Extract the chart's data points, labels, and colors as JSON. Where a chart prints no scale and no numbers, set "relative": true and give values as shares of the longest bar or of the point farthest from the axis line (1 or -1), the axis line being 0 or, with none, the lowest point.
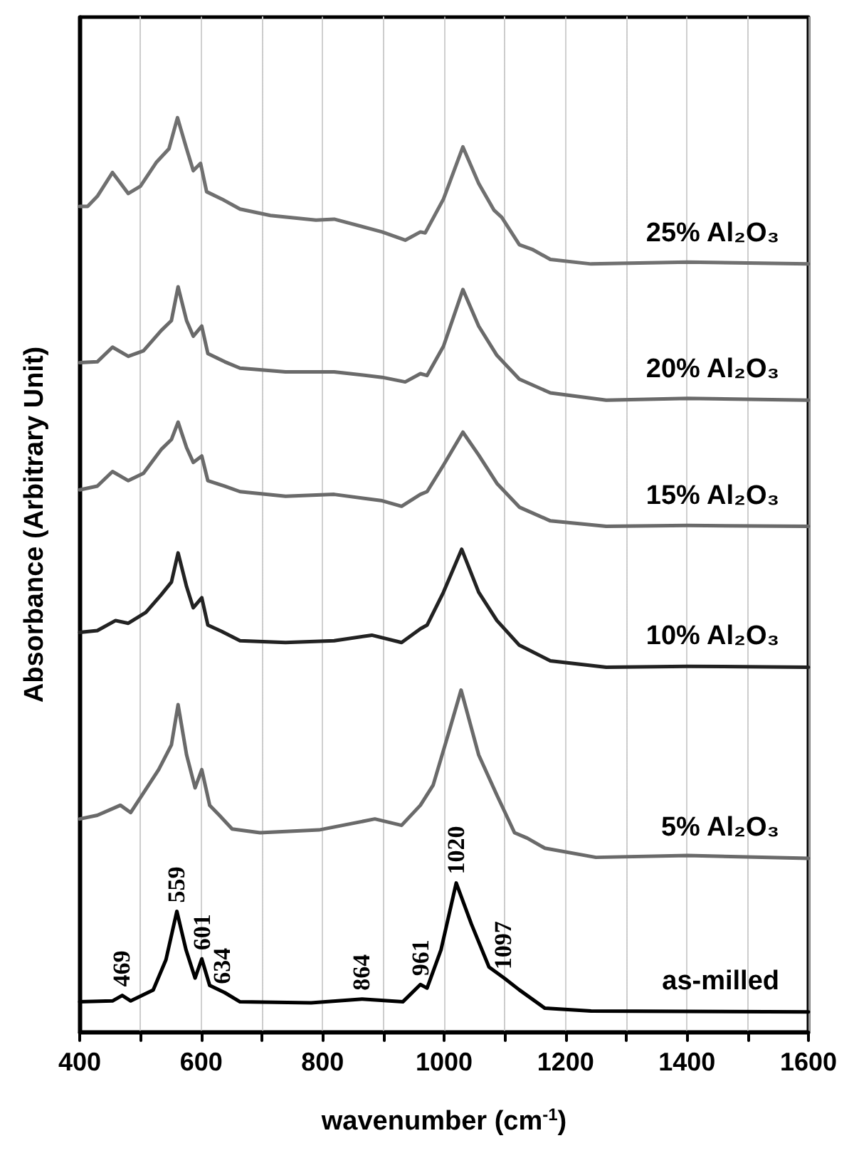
{
  "chart_data": {
    "type": "line",
    "relative": true,
    "xlabel": "wavenumber (cm$^{-1}$)",
    "ylabel": "Absorbance (Arbitrary Unit)",
    "xlim": [
      400,
      1600
    ],
    "xticks": [
      400,
      {
        "value": 500,
        "label": null
      },
      600,
      {
        "value": 700,
        "label": null
      },
      800,
      {
        "value": 900,
        "label": null
      },
      1000,
      {
        "value": 1100,
        "label": null
      },
      1200,
      {
        "value": 1300,
        "label": null
      },
      1400,
      {
        "value": 1500,
        "label": null
      },
      1600
    ],
    "grid": "x",
    "marker": "none",
    "line_style": "solid",
    "series": [
      {
        "name": "25% Al₂O₃",
        "color": "#707070",
        "x": [
          400,
          413,
          429,
          454,
          480,
          500,
          526,
          547,
          561,
          576,
          587,
          599,
          609,
          634,
          664,
          714,
          789,
          819,
          898,
          936,
          961,
          969,
          999,
          1031,
          1057,
          1082,
          1095,
          1124,
          1145,
          1175,
          1242,
          1401,
          1600
        ],
        "values": [
          0.903,
          0.903,
          0.914,
          0.94,
          0.917,
          0.925,
          0.951,
          0.966,
          1.0,
          0.966,
          0.942,
          0.95,
          0.919,
          0.911,
          0.9,
          0.893,
          0.888,
          0.889,
          0.875,
          0.866,
          0.875,
          0.874,
          0.911,
          0.968,
          0.928,
          0.899,
          0.891,
          0.861,
          0.856,
          0.845,
          0.84,
          0.842,
          0.84
        ]
      },
      {
        "name": "20% Al₂O₃",
        "color": "#6a6a6a",
        "x": [
          400,
          429,
          454,
          480,
          505,
          534,
          551,
          562,
          576,
          587,
          601,
          611,
          639,
          664,
          739,
          819,
          898,
          936,
          961,
          972,
          999,
          1031,
          1057,
          1087,
          1124,
          1175,
          1267,
          1401,
          1600
        ],
        "values": [
          0.732,
          0.733,
          0.749,
          0.739,
          0.745,
          0.767,
          0.778,
          0.815,
          0.778,
          0.761,
          0.772,
          0.742,
          0.733,
          0.726,
          0.722,
          0.722,
          0.716,
          0.711,
          0.72,
          0.718,
          0.75,
          0.812,
          0.772,
          0.74,
          0.714,
          0.699,
          0.691,
          0.693,
          0.691
        ]
      },
      {
        "name": "15% Al₂O₃",
        "color": "#6a6a6a",
        "x": [
          400,
          429,
          454,
          480,
          505,
          534,
          551,
          562,
          576,
          587,
          601,
          611,
          639,
          664,
          739,
          819,
          898,
          930,
          961,
          972,
          999,
          1031,
          1057,
          1087,
          1124,
          1175,
          1267,
          1401,
          1600
        ],
        "values": [
          0.593,
          0.597,
          0.613,
          0.603,
          0.611,
          0.637,
          0.648,
          0.667,
          0.639,
          0.623,
          0.63,
          0.603,
          0.597,
          0.591,
          0.586,
          0.588,
          0.581,
          0.575,
          0.588,
          0.591,
          0.62,
          0.656,
          0.631,
          0.6,
          0.574,
          0.559,
          0.553,
          0.554,
          0.553
        ]
      },
      {
        "name": "10% Al₂O₃",
        "color": "#222222",
        "x": [
          400,
          429,
          459,
          480,
          509,
          534,
          551,
          562,
          576,
          587,
          601,
          611,
          634,
          664,
          739,
          819,
          881,
          930,
          961,
          972,
          999,
          1029,
          1057,
          1087,
          1124,
          1175,
          1267,
          1401,
          1600
        ],
        "values": [
          0.437,
          0.439,
          0.45,
          0.447,
          0.459,
          0.478,
          0.492,
          0.524,
          0.487,
          0.464,
          0.475,
          0.445,
          0.438,
          0.428,
          0.426,
          0.428,
          0.434,
          0.426,
          0.441,
          0.445,
          0.481,
          0.528,
          0.481,
          0.45,
          0.423,
          0.406,
          0.399,
          0.4,
          0.399
        ]
      },
      {
        "name": "5% Al₂O₃",
        "color": "#6a6a6a",
        "x": [
          400,
          429,
          467,
          484,
          530,
          551,
          562,
          576,
          590,
          601,
          614,
          630,
          651,
          697,
          794,
          886,
          930,
          961,
          982,
          1007,
          1028,
          1057,
          1087,
          1116,
          1137,
          1166,
          1250,
          1401,
          1600
        ],
        "values": [
          0.233,
          0.237,
          0.248,
          0.24,
          0.287,
          0.314,
          0.358,
          0.303,
          0.267,
          0.287,
          0.248,
          0.237,
          0.222,
          0.218,
          0.221,
          0.233,
          0.226,
          0.248,
          0.27,
          0.326,
          0.374,
          0.303,
          0.259,
          0.218,
          0.212,
          0.201,
          0.191,
          0.193,
          0.19
        ]
      },
      {
        "name": "as-milled",
        "color": "#000000",
        "x": [
          400,
          454,
          470,
          484,
          521,
          542,
          560,
          575,
          590,
          601,
          614,
          639,
          664,
          781,
          865,
          932,
          961,
          972,
          995,
          1020,
          1045,
          1074,
          1099,
          1124,
          1166,
          1242,
          1600
        ],
        "values": [
          0.033,
          0.034,
          0.04,
          0.034,
          0.046,
          0.079,
          0.132,
          0.09,
          0.059,
          0.08,
          0.051,
          0.043,
          0.033,
          0.032,
          0.036,
          0.033,
          0.052,
          0.048,
          0.09,
          0.163,
          0.118,
          0.071,
          0.059,
          0.046,
          0.026,
          0.023,
          0.022
        ]
      }
    ],
    "annotations": [
      {
        "text": "469",
        "x": 469,
        "y": 0.04
      },
      {
        "text": "559",
        "x": 559,
        "y": 0.132
      },
      {
        "text": "601",
        "x": 601,
        "y": 0.08
      },
      {
        "text": "634",
        "x": 634,
        "y": 0.043
      },
      {
        "text": "864",
        "x": 864,
        "y": 0.036
      },
      {
        "text": "961",
        "x": 961,
        "y": 0.052
      },
      {
        "text": "1020",
        "x": 1020,
        "y": 0.163
      },
      {
        "text": "1097",
        "x": 1097,
        "y": 0.059
      }
    ]
  }
}
